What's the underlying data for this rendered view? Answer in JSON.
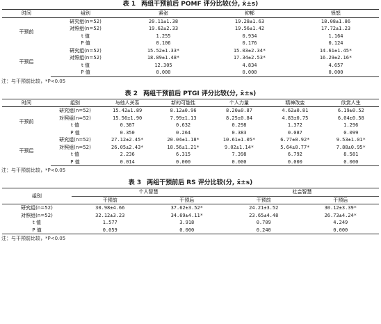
{
  "table1": {
    "number": "表 1",
    "title": "两组干预前后 POMF 评分比较(分, x̄±s)",
    "headers": [
      "时间",
      "组别",
      "紧张",
      "抑郁",
      "愤怒"
    ],
    "groups": [
      {
        "time": "干预前",
        "rows": [
          {
            "label": "研究组(n=52)",
            "values": [
              "20.11±1.38",
              "19.28±1.63",
              "18.08±1.86"
            ]
          },
          {
            "label": "对照组(n=52)",
            "values": [
              "19.62±2.33",
              "19.56±1.42",
              "17.72±1.23"
            ]
          },
          {
            "label": "t 值",
            "values": [
              "1.255",
              "0.934",
              "1.164"
            ]
          },
          {
            "label": "P 值",
            "values": [
              "0.106",
              "0.176",
              "0.124"
            ]
          }
        ]
      },
      {
        "time": "干预后",
        "rows": [
          {
            "label": "研究组(n=52)",
            "values": [
              "15.52±1.33*",
              "15.03±2.34*",
              "14.61±1.45*"
            ]
          },
          {
            "label": "对照组(n=52)",
            "values": [
              "18.89±1.48*",
              "17.34±2.53*",
              "16.29±2.16*"
            ]
          },
          {
            "label": "t 值",
            "values": [
              "12.305",
              "4.834",
              "4.657"
            ]
          },
          {
            "label": "P 值",
            "values": [
              "0.000",
              "0.000",
              "0.000"
            ]
          }
        ]
      }
    ],
    "note": "注：与干预前比较，*P<0.05"
  },
  "table2": {
    "number": "表 2",
    "title": "两组干预前后 PTGI 评分比较(分, x̄±s)",
    "headers": [
      "时间",
      "组别",
      "与他人关系",
      "新的可能性",
      "个人力量",
      "精神改变",
      "欣赏人生"
    ],
    "groups": [
      {
        "time": "干预前",
        "rows": [
          {
            "label": "研究组(n=52)",
            "values": [
              "15.42±1.89",
              "8.12±0.96",
              "8.20±0.87",
              "4.62±0.81",
              "6.19±0.52"
            ]
          },
          {
            "label": "对照组(n=52)",
            "values": [
              "15.56±1.90",
              "7.99±1.13",
              "8.25±0.84",
              "4.83±0.75",
              "6.04±0.58"
            ]
          },
          {
            "label": "t 值",
            "values": [
              "0.387",
              "0.632",
              "0.298",
              "1.372",
              "1.296"
            ]
          },
          {
            "label": "P 值",
            "values": [
              "0.350",
              "0.264",
              "0.383",
              "0.087",
              "0.099"
            ]
          }
        ]
      },
      {
        "time": "干预后",
        "rows": [
          {
            "label": "研究组(n=52)",
            "values": [
              "27.12±2.45*",
              "20.04±1.18*",
              "10.61±1.05*",
              "6.77±0.92*",
              "9.53±1.01*"
            ]
          },
          {
            "label": "对照组(n=52)",
            "values": [
              "26.05±2.43*",
              "18.56±1.21*",
              "9.02±1.14*",
              "5.64±0.77*",
              "7.88±0.95*"
            ]
          },
          {
            "label": "t 值",
            "values": [
              "2.236",
              "6.315",
              "7.398",
              "6.792",
              "8.581"
            ]
          },
          {
            "label": "P 值",
            "values": [
              "0.014",
              "0.000",
              "0.000",
              "0.000",
              "0.000"
            ]
          }
        ]
      }
    ],
    "note": "注：与干预前比较，*P<0.05"
  },
  "table3": {
    "number": "表 3",
    "title": "两组干预前后 RS 评分比较(分, x̄±s)",
    "group_header": "组别",
    "col_groups": [
      "个人智慧",
      "社会智慧"
    ],
    "sub_headers": [
      "干预前",
      "干预后",
      "干预前",
      "干预后"
    ],
    "rows": [
      {
        "label": "研究组(n=52)",
        "values": [
          "30.98±4.66",
          "37.62±3.52*",
          "24.21±3.52",
          "30.12±3.39*"
        ]
      },
      {
        "label": "对照组(n=52)",
        "values": [
          "32.12±3.23",
          "34.69±4.11*",
          "23.65±4.48",
          "26.73±4.24*"
        ]
      },
      {
        "label": "t 值",
        "values": [
          "1.577",
          "3.918",
          "0.709",
          "4.249"
        ]
      },
      {
        "label": "P 值",
        "values": [
          "0.059",
          "0.000",
          "0.240",
          "0.000"
        ]
      }
    ],
    "note": "注：与干预前比较，*P<0.05"
  }
}
